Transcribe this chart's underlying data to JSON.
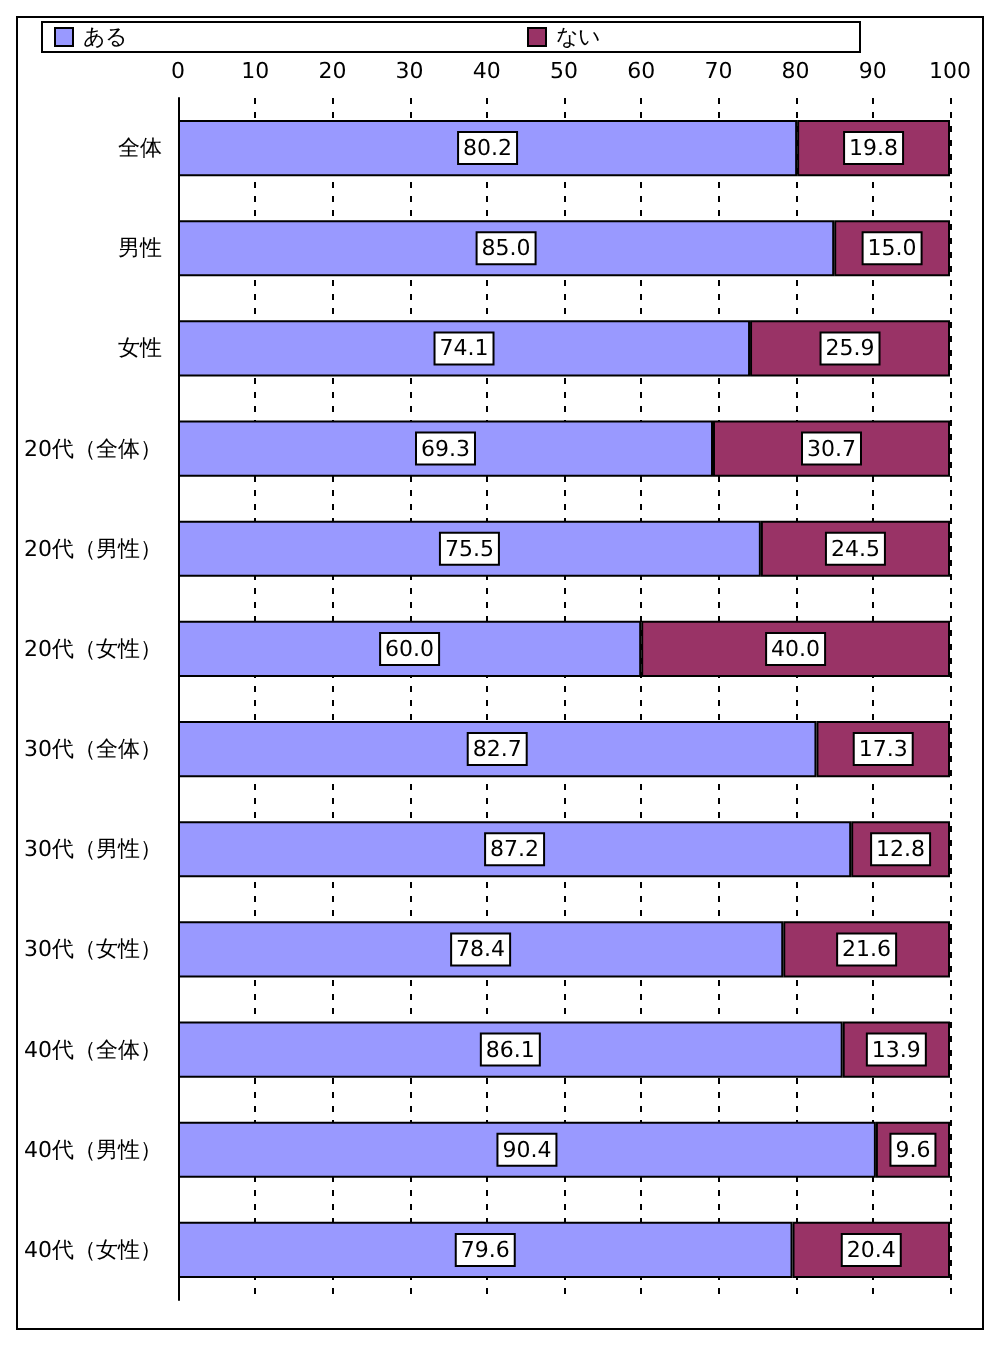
{
  "chart_data": {
    "type": "bar",
    "orientation": "horizontal",
    "stacked": true,
    "categories": [
      "全体",
      "男性",
      "女性",
      "20代（全体）",
      "20代（男性）",
      "20代（女性）",
      "30代（全体）",
      "30代（男性）",
      "30代（女性）",
      "40代（全体）",
      "40代（男性）",
      "40代（女性）"
    ],
    "series": [
      {
        "name": "ある",
        "color": "#9999ff",
        "values": [
          80.2,
          85.0,
          74.1,
          69.3,
          75.5,
          60.0,
          82.7,
          87.2,
          78.4,
          86.1,
          90.4,
          79.6
        ],
        "value_labels": [
          "80.2",
          "85.0",
          "74.1",
          "69.3",
          "75.5",
          "60.0",
          "82.7",
          "87.2",
          "78.4",
          "86.1",
          "90.4",
          "79.6"
        ]
      },
      {
        "name": "ない",
        "color": "#993366",
        "values": [
          19.8,
          15.0,
          25.9,
          30.7,
          24.5,
          40.0,
          17.3,
          12.8,
          21.6,
          13.9,
          9.6,
          20.4
        ],
        "value_labels": [
          "19.8",
          "15.0",
          "25.9",
          "30.7",
          "24.5",
          "40.0",
          "17.3",
          "12.8",
          "21.6",
          "13.9",
          "9.6",
          "20.4"
        ]
      }
    ],
    "xlim": [
      0,
      100
    ],
    "xticks": [
      0,
      10,
      20,
      30,
      40,
      50,
      60,
      70,
      80,
      90,
      100
    ],
    "grid": "x",
    "legend": "top left"
  }
}
